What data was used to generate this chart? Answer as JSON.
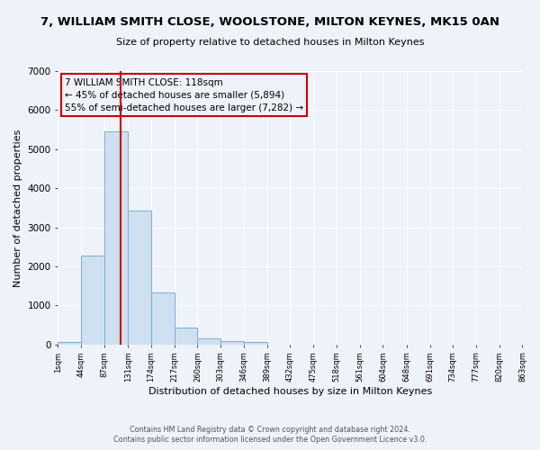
{
  "title": "7, WILLIAM SMITH CLOSE, WOOLSTONE, MILTON KEYNES, MK15 0AN",
  "subtitle": "Size of property relative to detached houses in Milton Keynes",
  "xlabel": "Distribution of detached houses by size in Milton Keynes",
  "ylabel": "Number of detached properties",
  "footer_line1": "Contains HM Land Registry data © Crown copyright and database right 2024.",
  "footer_line2": "Contains public sector information licensed under the Open Government Licence v3.0.",
  "annotation_line1": "7 WILLIAM SMITH CLOSE: 118sqm",
  "annotation_line2": "← 45% of detached houses are smaller (5,894)",
  "annotation_line3": "55% of semi-detached houses are larger (7,282) →",
  "property_size": 118,
  "bin_edges": [
    1,
    44,
    87,
    131,
    174,
    217,
    260,
    303,
    346,
    389,
    432,
    475,
    518,
    561,
    604,
    648,
    691,
    734,
    777,
    820,
    863
  ],
  "bin_counts": [
    75,
    2270,
    5460,
    3420,
    1340,
    440,
    160,
    80,
    55,
    0,
    0,
    0,
    0,
    0,
    0,
    0,
    0,
    0,
    0,
    0
  ],
  "bar_color": "#cfe0f0",
  "bar_edge_color": "#7aafd4",
  "vline_color": "#cc0000",
  "annotation_box_edge_color": "#cc0000",
  "background_color": "#eef2f9",
  "grid_color": "#ffffff",
  "ylim": [
    0,
    7000
  ],
  "yticks": [
    0,
    1000,
    2000,
    3000,
    4000,
    5000,
    6000,
    7000
  ]
}
